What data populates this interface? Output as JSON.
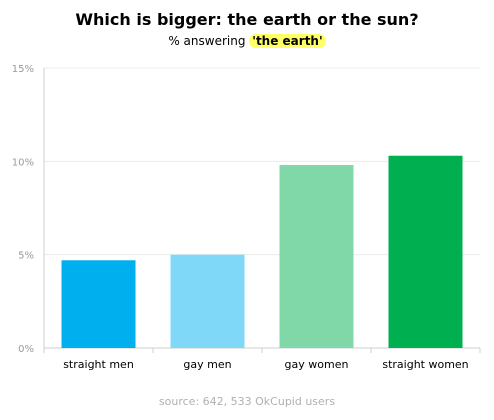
{
  "chart_data": {
    "type": "bar",
    "title": "Which is bigger: the earth or the sun?",
    "subtitle_prefix": "% answering ",
    "subtitle_highlight": "'the earth'",
    "categories": [
      "straight men",
      "gay men",
      "gay women",
      "straight women"
    ],
    "values": [
      4.7,
      5.0,
      9.8,
      10.3
    ],
    "colors": [
      "#00b0ee",
      "#80d8f8",
      "#80d8a8",
      "#00b050"
    ],
    "ylim": [
      0,
      15
    ],
    "yticks": [
      0,
      5,
      10,
      15
    ],
    "ytick_labels": [
      "0%",
      "5%",
      "10%",
      "15%"
    ],
    "grid": true,
    "xlabel": "",
    "ylabel": "",
    "source": "source: 642, 533 OkCupid users",
    "highlight_color": "#ffff66"
  }
}
